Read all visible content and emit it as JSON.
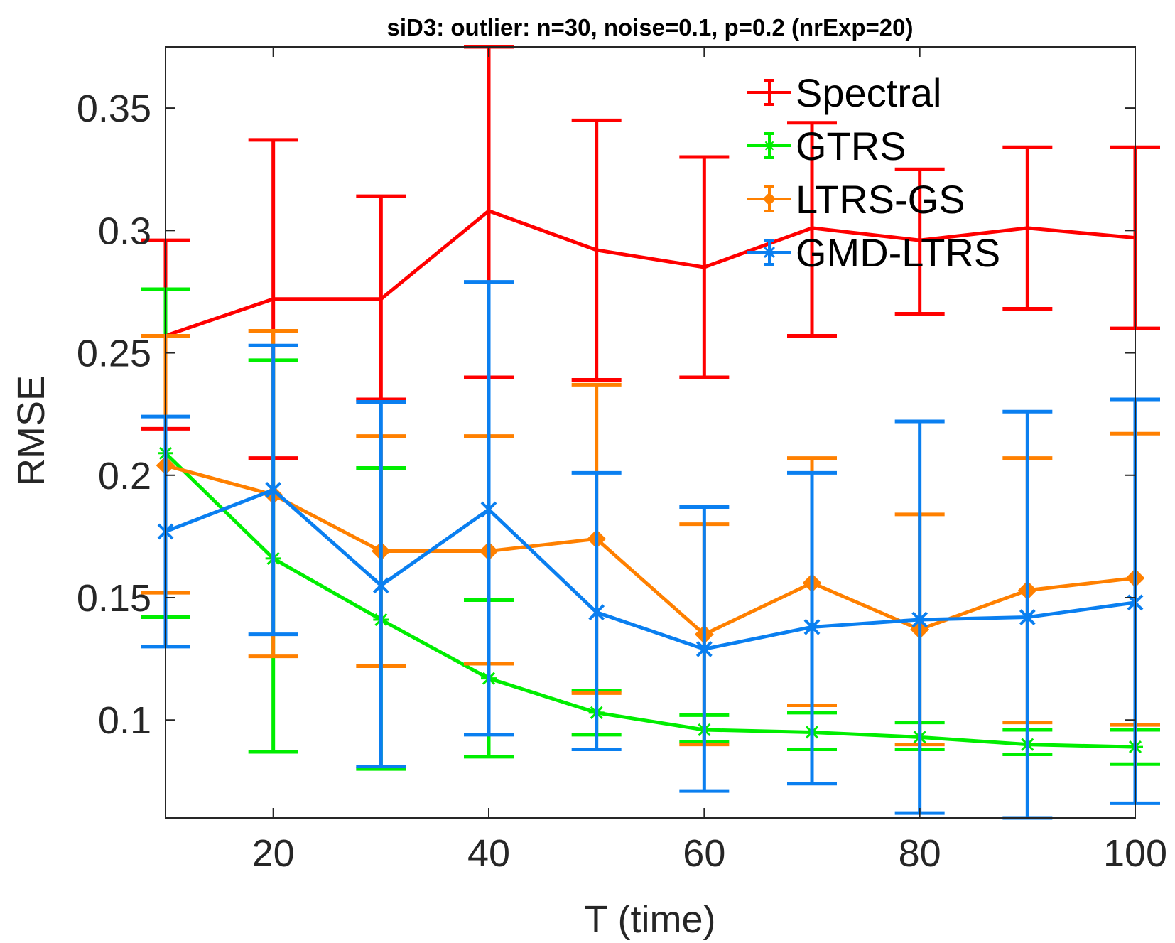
{
  "chart_data": {
    "type": "line",
    "title": "siD3: outlier: n=30, noise=0.1, p=0.2 (nrExp=20)",
    "xlabel": "T (time)",
    "ylabel": "RMSE",
    "xlim": [
      10,
      100
    ],
    "ylim": [
      0.06,
      0.375
    ],
    "x": [
      10,
      20,
      30,
      40,
      50,
      60,
      70,
      80,
      90,
      100
    ],
    "xticks": [
      20,
      40,
      60,
      80,
      100
    ],
    "xtick_labels": [
      "20",
      "40",
      "60",
      "80",
      "100"
    ],
    "yticks": [
      0.1,
      0.15,
      0.2,
      0.25,
      0.3,
      0.35
    ],
    "ytick_labels": [
      "0.1",
      "0.15",
      "0.2",
      "0.25",
      "0.3",
      "0.35"
    ],
    "legend_position": "top-right",
    "box": true,
    "grid": false,
    "series": [
      {
        "name": "Spectral",
        "color": "#ff0000",
        "marker": "none",
        "values": [
          0.257,
          0.272,
          0.272,
          0.308,
          0.292,
          0.285,
          0.301,
          0.296,
          0.301,
          0.297
        ],
        "err_low": [
          0.219,
          0.207,
          0.231,
          0.24,
          0.239,
          0.24,
          0.257,
          0.266,
          0.268,
          0.26
        ],
        "err_high": [
          0.296,
          0.337,
          0.314,
          0.375,
          0.345,
          0.33,
          0.344,
          0.325,
          0.334,
          0.334
        ]
      },
      {
        "name": "GTRS",
        "color": "#00ee00",
        "marker": "star",
        "values": [
          0.209,
          0.166,
          0.141,
          0.117,
          0.103,
          0.096,
          0.095,
          0.093,
          0.09,
          0.089
        ],
        "err_low": [
          0.142,
          0.087,
          0.08,
          0.085,
          0.094,
          0.091,
          0.088,
          0.088,
          0.086,
          0.082
        ],
        "err_high": [
          0.276,
          0.247,
          0.203,
          0.149,
          0.112,
          0.102,
          0.103,
          0.099,
          0.096,
          0.096
        ]
      },
      {
        "name": "LTRS-GS",
        "color": "#ff8000",
        "marker": "diamond",
        "values": [
          0.204,
          0.192,
          0.169,
          0.169,
          0.174,
          0.135,
          0.156,
          0.137,
          0.153,
          0.158
        ],
        "err_low": [
          0.152,
          0.126,
          0.122,
          0.123,
          0.111,
          0.09,
          0.106,
          0.09,
          0.099,
          0.098
        ],
        "err_high": [
          0.257,
          0.259,
          0.216,
          0.216,
          0.237,
          0.18,
          0.207,
          0.184,
          0.207,
          0.217
        ]
      },
      {
        "name": "GMD-LTRS",
        "color": "#0a7ff0",
        "marker": "x",
        "values": [
          0.177,
          0.194,
          0.155,
          0.186,
          0.144,
          0.129,
          0.138,
          0.141,
          0.142,
          0.148
        ],
        "err_low": [
          0.13,
          0.135,
          0.081,
          0.094,
          0.088,
          0.071,
          0.074,
          0.062,
          0.06,
          0.066
        ],
        "err_high": [
          0.224,
          0.253,
          0.23,
          0.279,
          0.201,
          0.187,
          0.201,
          0.222,
          0.226,
          0.231
        ]
      }
    ]
  }
}
